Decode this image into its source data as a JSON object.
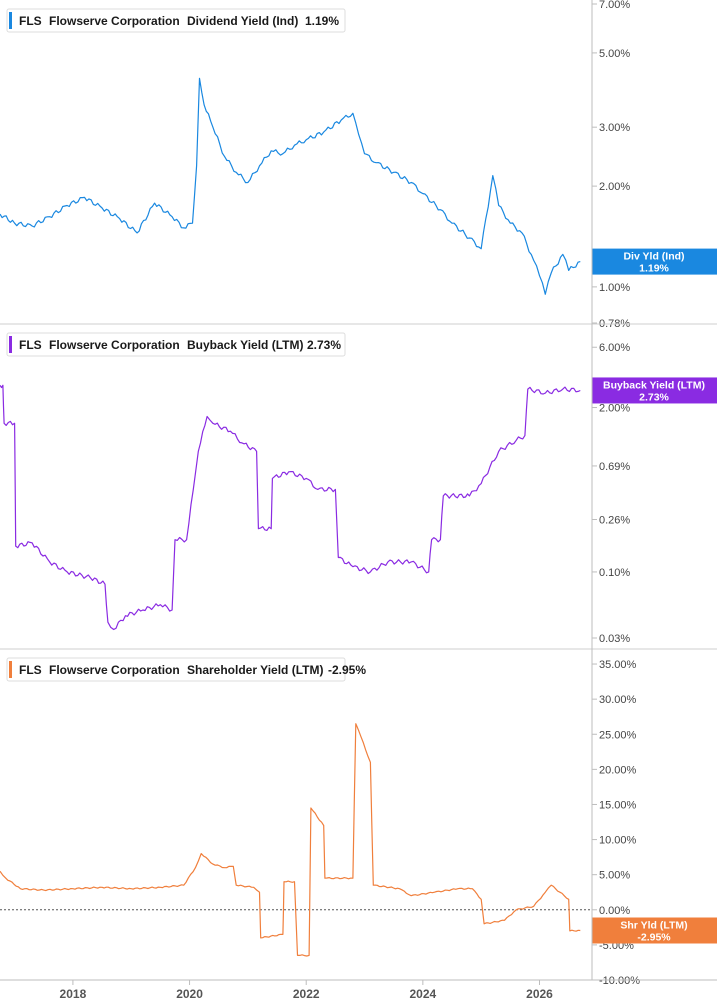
{
  "colors": {
    "div": "#1a88e0",
    "buyback": "#8a2be2",
    "shareholder": "#f07f3c",
    "axis": "#bdbdbd",
    "panel_border": "#cfcfcf",
    "zero_line": "#555555"
  },
  "chart_data": [
    {
      "type": "line",
      "legend": {
        "ticker": "FLS",
        "company": "Flowserve Corporation",
        "metric": "Dividend Yield (Ind)",
        "value": "1.19%"
      },
      "badge": {
        "line1": "Div Yld (Ind)",
        "line2": "1.19%"
      },
      "scale": "log",
      "ylim": [
        0.78,
        7.0
      ],
      "yticks": [
        {
          "v": 7.0,
          "label": "7.00%"
        },
        {
          "v": 5.0,
          "label": "5.00%"
        },
        {
          "v": 3.0,
          "label": "3.00%"
        },
        {
          "v": 2.0,
          "label": "2.00%"
        },
        {
          "v": 1.0,
          "label": "1.00%"
        },
        {
          "v": 0.78,
          "label": "0.78%"
        }
      ],
      "x": [
        2016.75,
        2017.0,
        2017.3,
        2017.6,
        2017.9,
        2018.2,
        2018.5,
        2018.8,
        2019.1,
        2019.4,
        2019.7,
        2019.9,
        2020.05,
        2020.12,
        2020.17,
        2020.25,
        2020.4,
        2020.6,
        2020.8,
        2021.0,
        2021.2,
        2021.4,
        2021.6,
        2021.8,
        2022.0,
        2022.3,
        2022.6,
        2022.8,
        2022.9,
        2023.0,
        2023.2,
        2023.5,
        2023.8,
        2024.0,
        2024.3,
        2024.5,
        2024.8,
        2025.0,
        2025.2,
        2025.3,
        2025.5,
        2025.7,
        2025.9,
        2026.0,
        2026.1,
        2026.2,
        2026.4,
        2026.5,
        2026.7
      ],
      "y": [
        1.65,
        1.55,
        1.52,
        1.62,
        1.75,
        1.85,
        1.72,
        1.6,
        1.45,
        1.78,
        1.62,
        1.5,
        1.55,
        2.3,
        4.2,
        3.5,
        3.0,
        2.45,
        2.2,
        2.05,
        2.3,
        2.55,
        2.5,
        2.65,
        2.75,
        2.9,
        3.15,
        3.3,
        2.85,
        2.5,
        2.35,
        2.2,
        2.05,
        1.9,
        1.7,
        1.55,
        1.4,
        1.3,
        2.15,
        1.75,
        1.55,
        1.45,
        1.2,
        1.08,
        0.95,
        1.1,
        1.25,
        1.12,
        1.19
      ]
    },
    {
      "type": "line",
      "legend": {
        "ticker": "FLS",
        "company": "Flowserve Corporation",
        "metric": "Buyback Yield (LTM)",
        "value": "2.73%"
      },
      "badge": {
        "line1": "Buyback Yield (LTM)",
        "line2": "2.73%"
      },
      "scale": "log",
      "ylim": [
        0.025,
        9.0
      ],
      "yticks": [
        {
          "v": 6.0,
          "label": "6.00%"
        },
        {
          "v": 2.0,
          "label": "2.00%"
        },
        {
          "v": 0.69,
          "label": "0.69%"
        },
        {
          "v": 0.26,
          "label": "0.26%"
        },
        {
          "v": 0.1,
          "label": "0.10%"
        },
        {
          "v": 0.03,
          "label": "0.03%"
        }
      ],
      "x": [
        2016.75,
        2016.8,
        2016.82,
        2017.0,
        2017.02,
        2017.3,
        2017.6,
        2017.9,
        2018.3,
        2018.55,
        2018.6,
        2018.7,
        2018.9,
        2019.2,
        2019.5,
        2019.7,
        2019.75,
        2019.95,
        2020.1,
        2020.15,
        2020.3,
        2020.4,
        2020.7,
        2020.9,
        2021.15,
        2021.18,
        2021.4,
        2021.42,
        2021.7,
        2022.0,
        2022.2,
        2022.5,
        2022.55,
        2022.8,
        2023.1,
        2023.4,
        2023.8,
        2024.1,
        2024.15,
        2024.3,
        2024.35,
        2024.8,
        2025.0,
        2025.3,
        2025.6,
        2025.75,
        2025.8,
        2026.1,
        2026.4,
        2026.7
      ],
      "y": [
        3.0,
        3.0,
        1.5,
        1.5,
        0.16,
        0.17,
        0.12,
        0.1,
        0.09,
        0.08,
        0.04,
        0.035,
        0.045,
        0.05,
        0.055,
        0.05,
        0.18,
        0.18,
        0.6,
        0.9,
        1.7,
        1.5,
        1.3,
        1.05,
        0.9,
        0.22,
        0.22,
        0.55,
        0.62,
        0.55,
        0.45,
        0.45,
        0.13,
        0.11,
        0.1,
        0.12,
        0.12,
        0.1,
        0.18,
        0.18,
        0.4,
        0.4,
        0.5,
        0.9,
        1.1,
        1.2,
        2.8,
        2.6,
        2.8,
        2.73
      ]
    },
    {
      "type": "line",
      "legend": {
        "ticker": "FLS",
        "company": "Flowserve Corporation",
        "metric": "Shareholder Yield (LTM)",
        "value": "-2.95%"
      },
      "badge": {
        "line1": "Shr Yld (LTM)",
        "line2": "-2.95%"
      },
      "scale": "linear",
      "ylim": [
        -10.0,
        37.0
      ],
      "zero_line": true,
      "yticks": [
        {
          "v": 35,
          "label": "35.00%"
        },
        {
          "v": 30,
          "label": "30.00%"
        },
        {
          "v": 25,
          "label": "25.00%"
        },
        {
          "v": 20,
          "label": "20.00%"
        },
        {
          "v": 15,
          "label": "15.00%"
        },
        {
          "v": 10,
          "label": "10.00%"
        },
        {
          "v": 5,
          "label": "5.00%"
        },
        {
          "v": 0,
          "label": "0.00%"
        },
        {
          "v": -5,
          "label": "-5.00%"
        },
        {
          "v": -10,
          "label": "-10.00%"
        }
      ],
      "x": [
        2016.75,
        2016.85,
        2017.1,
        2017.5,
        2018.0,
        2018.5,
        2019.0,
        2019.5,
        2019.9,
        2020.1,
        2020.2,
        2020.4,
        2020.6,
        2020.75,
        2020.8,
        2021.1,
        2021.2,
        2021.22,
        2021.6,
        2021.62,
        2021.8,
        2021.85,
        2022.05,
        2022.08,
        2022.3,
        2022.32,
        2022.8,
        2022.85,
        2022.9,
        2023.1,
        2023.15,
        2023.6,
        2023.8,
        2024.2,
        2024.6,
        2024.85,
        2025.0,
        2025.05,
        2025.4,
        2025.6,
        2025.9,
        2026.1,
        2026.2,
        2026.35,
        2026.5,
        2026.52,
        2026.7
      ],
      "y": [
        5.5,
        4.5,
        3.0,
        2.8,
        3.0,
        3.2,
        3.0,
        3.2,
        3.5,
        6.0,
        8.0,
        6.5,
        6.0,
        6.2,
        3.5,
        3.2,
        2.5,
        -4.0,
        -3.5,
        4.0,
        4.0,
        -6.5,
        -6.5,
        14.5,
        12.0,
        4.5,
        4.5,
        26.5,
        25.5,
        21.0,
        3.5,
        3.0,
        2.0,
        2.5,
        3.0,
        3.0,
        1.5,
        -2.0,
        -1.5,
        0.0,
        0.5,
        2.5,
        3.5,
        2.5,
        1.5,
        -3.0,
        -2.95
      ]
    }
  ],
  "xaxis": {
    "range": [
      2016.75,
      2026.9
    ],
    "ticks": [
      {
        "v": 2018,
        "label": "2018"
      },
      {
        "v": 2020,
        "label": "2020"
      },
      {
        "v": 2022,
        "label": "2022"
      },
      {
        "v": 2024,
        "label": "2024"
      },
      {
        "v": 2026,
        "label": "2026"
      }
    ]
  }
}
